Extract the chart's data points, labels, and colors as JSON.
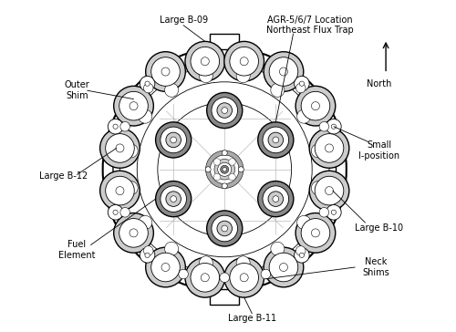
{
  "background_color": "#ffffff",
  "line_color": "#000000",
  "gray_color": "#666666",
  "figsize": [
    5.0,
    3.64
  ],
  "dpi": 100,
  "outer_circle_r": 3.55,
  "inner_circle_r": 3.25,
  "inner2_circle_r": 3.05,
  "core_circle_r": 2.55,
  "large_fuel_r": 0.58,
  "large_fuel_inner_r": 0.42,
  "large_fuel_dot_r": 0.12,
  "small_ipos_r": 0.22,
  "small_ipos_dot_r": 0.07,
  "fe_outer_r": 0.52,
  "fe_mid_r": 0.38,
  "fe_inner_r": 0.22,
  "fe_dot_r": 0.09,
  "neck_shim_r": 0.14,
  "central_sq_size": 0.3,
  "xlim": [
    -5.2,
    5.2
  ],
  "ylim": [
    -4.5,
    4.8
  ],
  "large_fuel_positions": [
    [
      -1.72,
      2.85
    ],
    [
      -0.57,
      3.15
    ],
    [
      0.57,
      3.15
    ],
    [
      1.72,
      2.85
    ],
    [
      2.65,
      1.85
    ],
    [
      3.05,
      0.62
    ],
    [
      3.05,
      -0.62
    ],
    [
      2.65,
      -1.85
    ],
    [
      1.72,
      -2.85
    ],
    [
      0.57,
      -3.15
    ],
    [
      -0.57,
      -3.15
    ],
    [
      -1.72,
      -2.85
    ],
    [
      -2.65,
      -1.85
    ],
    [
      -3.05,
      -0.62
    ],
    [
      -3.05,
      0.62
    ],
    [
      -2.65,
      1.85
    ]
  ],
  "small_ipos_positions": [
    [
      2.25,
      2.5
    ],
    [
      -2.25,
      2.5
    ],
    [
      3.18,
      1.25
    ],
    [
      3.18,
      -1.25
    ],
    [
      2.25,
      -2.5
    ],
    [
      -2.25,
      -2.5
    ],
    [
      -3.18,
      -1.25
    ],
    [
      -3.18,
      1.25
    ]
  ],
  "fe_positions": [
    [
      0.0,
      1.72
    ],
    [
      1.49,
      0.86
    ],
    [
      1.49,
      -0.86
    ],
    [
      0.0,
      -1.72
    ],
    [
      -1.49,
      -0.86
    ],
    [
      -1.49,
      0.86
    ]
  ],
  "neck_shim_positions": [
    [
      0.57,
      -3.15
    ],
    [
      -0.57,
      -3.15
    ],
    [
      1.72,
      -2.85
    ],
    [
      -1.72,
      -2.85
    ]
  ],
  "outer_shim_positions": [
    [
      2.45,
      2.7
    ],
    [
      -2.45,
      2.7
    ],
    [
      3.3,
      0.0
    ],
    [
      2.45,
      -2.7
    ],
    [
      -2.45,
      -2.7
    ],
    [
      -3.3,
      0.0
    ]
  ]
}
